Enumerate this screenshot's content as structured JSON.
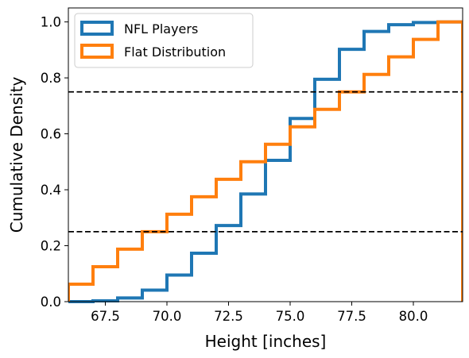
{
  "chart_data": {
    "type": "line",
    "step": "post",
    "xlabel": "Height [inches]",
    "ylabel": "Cumulative Density",
    "xlim": [
      66,
      82
    ],
    "ylim": [
      0,
      1.05
    ],
    "xticks": [
      67.5,
      70.0,
      72.5,
      75.0,
      77.5,
      80.0
    ],
    "xtick_labels": [
      "67.5",
      "70.0",
      "72.5",
      "75.0",
      "77.5",
      "80.0"
    ],
    "yticks": [
      0.0,
      0.2,
      0.4,
      0.6,
      0.8,
      1.0
    ],
    "ytick_labels": [
      "0.0",
      "0.2",
      "0.4",
      "0.6",
      "0.8",
      "1.0"
    ],
    "grid": false,
    "legend_position": "top-left",
    "hlines": [
      0.25,
      0.75
    ],
    "series": [
      {
        "name": "NFL Players",
        "color": "#1f77b4",
        "x": [
          66,
          67,
          68,
          69,
          70,
          71,
          72,
          73,
          74,
          75,
          76,
          77,
          78,
          79,
          80,
          81,
          82
        ],
        "y": [
          0.0,
          0.003,
          0.013,
          0.041,
          0.095,
          0.173,
          0.272,
          0.385,
          0.505,
          0.655,
          0.795,
          0.902,
          0.966,
          0.99,
          0.998,
          1.0,
          0.0
        ]
      },
      {
        "name": "Flat Distribution",
        "color": "#ff7f0e",
        "x": [
          66,
          67,
          68,
          69,
          70,
          71,
          72,
          73,
          74,
          75,
          76,
          77,
          78,
          79,
          80,
          81,
          82
        ],
        "y": [
          0.0625,
          0.125,
          0.1875,
          0.25,
          0.3125,
          0.375,
          0.4375,
          0.5,
          0.5625,
          0.625,
          0.6875,
          0.75,
          0.8125,
          0.875,
          0.9375,
          1.0,
          0.0
        ]
      }
    ]
  }
}
